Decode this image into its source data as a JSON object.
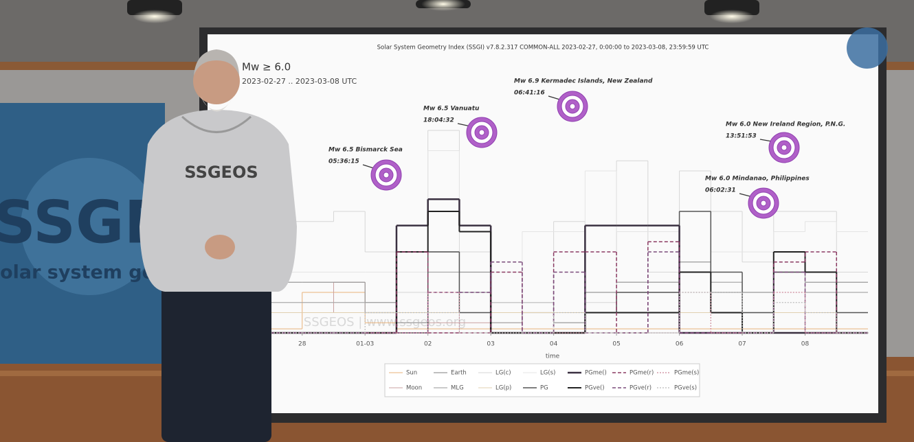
{
  "chart_data": {
    "type": "line",
    "drawstyle": "steps",
    "header": "Solar System Geometry Index (SSGI) v7.8.2.317 COMMON-ALL 2023-02-27,  0:00:00 to 2023-03-08, 23:59:59 UTC",
    "title": "Mw ≥ 6.0",
    "subtitle": "2023-02-27 .. 2023-03-08 UTC",
    "xlabel": "time",
    "watermark": "SSGEOS | www.ssgeos.org",
    "xlim": [
      0.5,
      10
    ],
    "ylim": [
      0,
      1
    ],
    "xticks": [
      {
        "value": 1,
        "label": "28"
      },
      {
        "value": 2,
        "label": "01-03"
      },
      {
        "value": 3,
        "label": "02"
      },
      {
        "value": 4,
        "label": "03"
      },
      {
        "value": 5,
        "label": "04"
      },
      {
        "value": 6,
        "label": "05"
      },
      {
        "value": 7,
        "label": "06"
      },
      {
        "value": 8,
        "label": "07"
      },
      {
        "value": 9,
        "label": "08"
      }
    ],
    "x": [
      0.5,
      1,
      1.5,
      2,
      2.5,
      3,
      3.5,
      4,
      4.5,
      5,
      5.5,
      6,
      6.5,
      7,
      7.5,
      8,
      8.5,
      9,
      9.5,
      10
    ],
    "series": [
      {
        "name": "Sun",
        "color": "#e8b27a",
        "dash": "solid",
        "width": 1,
        "values": [
          0.02,
          0.2,
          0.2,
          0.05,
          0.02,
          0.02,
          0.02,
          0.02,
          0.02,
          0.02,
          0.02,
          0.02,
          0.02,
          0.02,
          0.02,
          0.02,
          0.02,
          0.02,
          0.02,
          0.02
        ]
      },
      {
        "name": "Moon",
        "color": "#c9a0a0",
        "dash": "solid",
        "width": 1,
        "values": [
          0.1,
          0.1,
          0.25,
          0.1,
          0.05,
          0.05,
          0.05,
          0.05,
          0.1,
          0.1,
          0.1,
          0.1,
          0.1,
          0.3,
          0.3,
          0.1,
          0.1,
          0.1,
          0.1,
          0.1
        ]
      },
      {
        "name": "Earth",
        "color": "#999999",
        "dash": "solid",
        "width": 1.2,
        "values": [
          0.25,
          0.25,
          0.25,
          0.15,
          0.05,
          0.4,
          0.3,
          0.15,
          0.15,
          0.05,
          0.2,
          0.25,
          0.25,
          0.35,
          0.2,
          0.2,
          0.3,
          0.25,
          0.25,
          0.25
        ]
      },
      {
        "name": "MLG",
        "color": "#aaaaaa",
        "dash": "solid",
        "width": 1.2,
        "values": [
          0.15,
          0.15,
          0.15,
          0.1,
          0.05,
          0.3,
          0.2,
          0.05,
          0.1,
          0.05,
          0.1,
          0.25,
          0.25,
          0.3,
          0.25,
          0.1,
          0.3,
          0.2,
          0.2,
          0.2
        ]
      },
      {
        "name": "LG(c)",
        "color": "#d6d6d6",
        "dash": "solid",
        "width": 1,
        "values": [
          0.55,
          0.55,
          0.6,
          0.4,
          0.2,
          1.0,
          0.4,
          0.15,
          0.15,
          0.55,
          0.15,
          0.85,
          0.3,
          0.8,
          0.6,
          0.35,
          0.6,
          0.6,
          0.3,
          0.3
        ]
      },
      {
        "name": "LG(p)",
        "color": "#e0d0b0",
        "dash": "solid",
        "width": 1,
        "values": [
          0.1,
          0.1,
          0.1,
          0.1,
          0.1,
          0.1,
          0.1,
          0.1,
          0.1,
          0.1,
          0.1,
          0.1,
          0.1,
          0.1,
          0.1,
          0.1,
          0.1,
          0.1,
          0.1,
          0.1
        ]
      },
      {
        "name": "LG(s)",
        "color": "#e4e4e4",
        "dash": "solid",
        "width": 1,
        "values": [
          0.3,
          0.3,
          0.3,
          0.3,
          0.3,
          0.9,
          0.5,
          0.3,
          0.5,
          0.5,
          0.8,
          0.5,
          0.5,
          0.6,
          0.4,
          0.4,
          0.5,
          0.55,
          0.5,
          0.5
        ]
      },
      {
        "name": "PG",
        "color": "#555555",
        "dash": "solid",
        "width": 1.5,
        "values": [
          0,
          0,
          0,
          0,
          0,
          0.4,
          0.1,
          0,
          0,
          0,
          0.1,
          0.2,
          0.2,
          0.6,
          0.3,
          0.1,
          0.3,
          0.3,
          0.1,
          0.1
        ]
      },
      {
        "name": "PGme()",
        "color": "#3a3040",
        "dash": "solid",
        "width": 2.5,
        "values": [
          0,
          0,
          0,
          0,
          0.53,
          0.66,
          0.53,
          0,
          0,
          0,
          0.53,
          0.53,
          0.53,
          0,
          0,
          0,
          0,
          0,
          0,
          0
        ]
      },
      {
        "name": "PGve()",
        "color": "#222222",
        "dash": "solid",
        "width": 2,
        "values": [
          0,
          0,
          0,
          0,
          0.4,
          0.6,
          0.5,
          0,
          0,
          0,
          0.1,
          0.1,
          0.1,
          0.3,
          0.1,
          0,
          0.4,
          0.3,
          0,
          0
        ]
      },
      {
        "name": "PGme(r)",
        "color": "#8b3a62",
        "dash": "dashed",
        "width": 1.5,
        "values": [
          0,
          0,
          0,
          0,
          0.4,
          0,
          0,
          0.3,
          0,
          0.4,
          0.4,
          0,
          0.45,
          0,
          0,
          0,
          0.35,
          0.4,
          0,
          0
        ]
      },
      {
        "name": "PGve(r)",
        "color": "#7a4a7a",
        "dash": "dashed",
        "width": 1.5,
        "values": [
          0,
          0,
          0,
          0,
          0,
          0.2,
          0.2,
          0.35,
          0,
          0.3,
          0,
          0,
          0.4,
          0,
          0,
          0,
          0.3,
          0,
          0,
          0
        ]
      },
      {
        "name": "PGme(s)",
        "color": "#cc8899",
        "dash": "dotted",
        "width": 1.2,
        "values": [
          0,
          0,
          0,
          0,
          0,
          0.2,
          0,
          0,
          0,
          0,
          0,
          0,
          0,
          0.2,
          0,
          0,
          0.2,
          0,
          0,
          0
        ]
      },
      {
        "name": "PGve(s)",
        "color": "#bbbbbb",
        "dash": "dotted",
        "width": 1.2,
        "values": [
          0,
          0,
          0,
          0.1,
          0.1,
          0.1,
          0,
          0,
          0,
          0.1,
          0,
          0,
          0,
          0.2,
          0.2,
          0,
          0.15,
          0.1,
          0,
          0
        ]
      }
    ],
    "annotations": [
      {
        "text": "Mw 6.5 Bismarck Sea",
        "time": "05:36:15"
      },
      {
        "text": "Mw 6.5 Vanuatu",
        "time": "18:04:32"
      },
      {
        "text": "Mw 6.9 Kermadec Islands, New Zealand",
        "time": "06:41:16"
      },
      {
        "text": "Mw 6.0 New Ireland Region, P.N.G.",
        "time": "13:51:53"
      },
      {
        "text": "Mw 6.0 Mindanao, Philippines",
        "time": "06:02:31"
      }
    ]
  },
  "scene": {
    "banner_logo": "SSGEOS",
    "banner_tagline": "solar system geometry s",
    "hoodie": "SSGEOS"
  }
}
